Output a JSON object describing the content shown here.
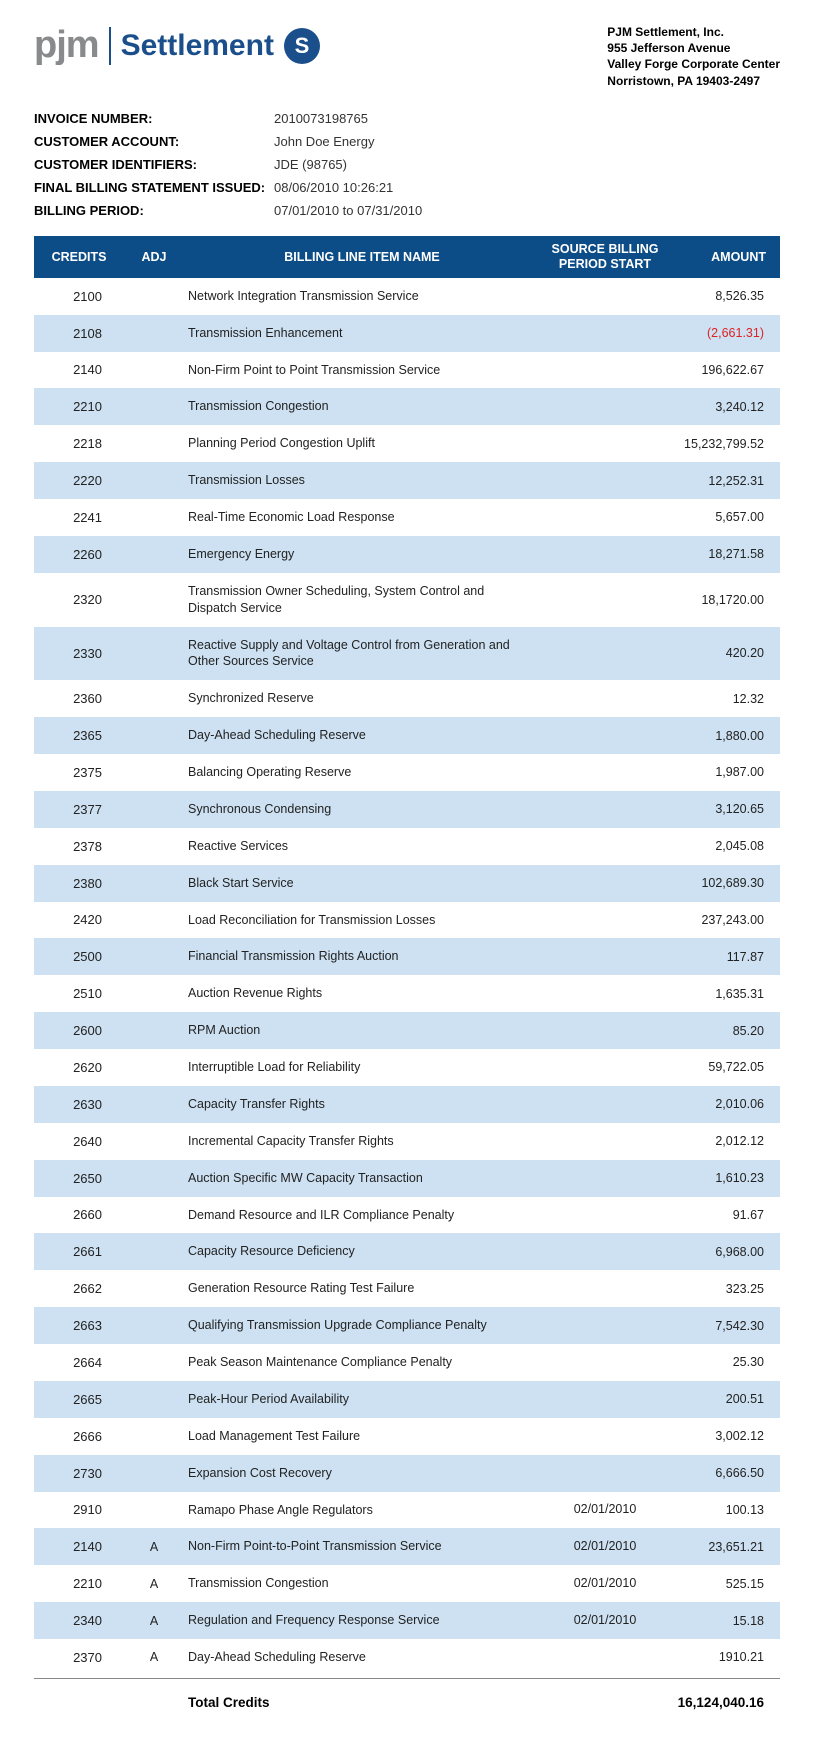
{
  "logo": {
    "pjm": "pjm",
    "settlement": "Settlement",
    "iconGlyph": "S"
  },
  "company": {
    "name": "PJM Settlement, Inc.",
    "line1": "955 Jefferson Avenue",
    "line2": "Valley Forge Corporate Center",
    "line3": "Norristown, PA  19403-2497"
  },
  "meta": {
    "invoiceNumberLabel": "INVOICE NUMBER:",
    "invoiceNumber": "2010073198765",
    "customerAccountLabel": "CUSTOMER ACCOUNT:",
    "customerAccount": "John Doe Energy",
    "customerIdentifiersLabel": "CUSTOMER IDENTIFIERS:",
    "customerIdentifiers": "JDE (98765)",
    "finalBillingLabel": "FINAL BILLING STATEMENT ISSUED:",
    "finalBilling": "08/06/2010 10:26:21",
    "billingPeriodLabel": "BILLING PERIOD:",
    "billingPeriod": "07/01/2010 to 07/31/2010"
  },
  "columns": {
    "credits": "CREDITS",
    "adj": "ADJ",
    "name": "BILLING LINE ITEM NAME",
    "source": "SOURCE BILLING PERIOD START",
    "amount": "AMOUNT"
  },
  "rows": [
    {
      "credits": "2100",
      "adj": "",
      "name": "Network Integration Transmission Service",
      "source": "",
      "amount": "8,526.35",
      "neg": false
    },
    {
      "credits": "2108",
      "adj": "",
      "name": "Transmission Enhancement",
      "source": "",
      "amount": "(2,661.31)",
      "neg": true
    },
    {
      "credits": "2140",
      "adj": "",
      "name": "Non-Firm Point to Point Transmission Service",
      "source": "",
      "amount": "196,622.67",
      "neg": false
    },
    {
      "credits": "2210",
      "adj": "",
      "name": "Transmission Congestion",
      "source": "",
      "amount": "3,240.12",
      "neg": false
    },
    {
      "credits": "2218",
      "adj": "",
      "name": "Planning Period Congestion Uplift",
      "source": "",
      "amount": "15,232,799.52",
      "neg": false
    },
    {
      "credits": "2220",
      "adj": "",
      "name": "Transmission Losses",
      "source": "",
      "amount": "12,252.31",
      "neg": false
    },
    {
      "credits": "2241",
      "adj": "",
      "name": "Real-Time Economic Load Response",
      "source": "",
      "amount": "5,657.00",
      "neg": false
    },
    {
      "credits": "2260",
      "adj": "",
      "name": "Emergency Energy",
      "source": "",
      "amount": "18,271.58",
      "neg": false
    },
    {
      "credits": "2320",
      "adj": "",
      "name": "Transmission Owner Scheduling, System Control and Dispatch Service",
      "source": "",
      "amount": "18,1720.00",
      "neg": false
    },
    {
      "credits": "2330",
      "adj": "",
      "name": "Reactive Supply and Voltage Control from Generation and Other Sources Service",
      "source": "",
      "amount": "420.20",
      "neg": false
    },
    {
      "credits": "2360",
      "adj": "",
      "name": "Synchronized Reserve",
      "source": "",
      "amount": "12.32",
      "neg": false
    },
    {
      "credits": "2365",
      "adj": "",
      "name": "Day-Ahead Scheduling Reserve",
      "source": "",
      "amount": "1,880.00",
      "neg": false
    },
    {
      "credits": "2375",
      "adj": "",
      "name": "Balancing Operating Reserve",
      "source": "",
      "amount": "1,987.00",
      "neg": false
    },
    {
      "credits": "2377",
      "adj": "",
      "name": "Synchronous Condensing",
      "source": "",
      "amount": "3,120.65",
      "neg": false
    },
    {
      "credits": "2378",
      "adj": "",
      "name": "Reactive Services",
      "source": "",
      "amount": "2,045.08",
      "neg": false
    },
    {
      "credits": "2380",
      "adj": "",
      "name": "Black Start Service",
      "source": "",
      "amount": "102,689.30",
      "neg": false
    },
    {
      "credits": "2420",
      "adj": "",
      "name": "Load Reconciliation for Transmission Losses",
      "source": "",
      "amount": "237,243.00",
      "neg": false
    },
    {
      "credits": "2500",
      "adj": "",
      "name": "Financial Transmission Rights Auction",
      "source": "",
      "amount": "117.87",
      "neg": false
    },
    {
      "credits": "2510",
      "adj": "",
      "name": "Auction Revenue Rights",
      "source": "",
      "amount": "1,635.31",
      "neg": false
    },
    {
      "credits": "2600",
      "adj": "",
      "name": "RPM Auction",
      "source": "",
      "amount": "85.20",
      "neg": false
    },
    {
      "credits": "2620",
      "adj": "",
      "name": "Interruptible Load for Reliability",
      "source": "",
      "amount": "59,722.05",
      "neg": false
    },
    {
      "credits": "2630",
      "adj": "",
      "name": "Capacity Transfer Rights",
      "source": "",
      "amount": "2,010.06",
      "neg": false
    },
    {
      "credits": "2640",
      "adj": "",
      "name": "Incremental Capacity Transfer Rights",
      "source": "",
      "amount": "2,012.12",
      "neg": false
    },
    {
      "credits": "2650",
      "adj": "",
      "name": "Auction Specific MW Capacity Transaction",
      "source": "",
      "amount": "1,610.23",
      "neg": false
    },
    {
      "credits": "2660",
      "adj": "",
      "name": "Demand Resource and ILR Compliance Penalty",
      "source": "",
      "amount": "91.67",
      "neg": false
    },
    {
      "credits": "2661",
      "adj": "",
      "name": "Capacity Resource Deficiency",
      "source": "",
      "amount": "6,968.00",
      "neg": false
    },
    {
      "credits": "2662",
      "adj": "",
      "name": "Generation Resource Rating Test Failure",
      "source": "",
      "amount": "323.25",
      "neg": false
    },
    {
      "credits": "2663",
      "adj": "",
      "name": "Qualifying Transmission Upgrade Compliance Penalty",
      "source": "",
      "amount": "7,542.30",
      "neg": false
    },
    {
      "credits": "2664",
      "adj": "",
      "name": "Peak Season Maintenance Compliance Penalty",
      "source": "",
      "amount": "25.30",
      "neg": false
    },
    {
      "credits": "2665",
      "adj": "",
      "name": "Peak-Hour Period Availability",
      "source": "",
      "amount": "200.51",
      "neg": false
    },
    {
      "credits": "2666",
      "adj": "",
      "name": "Load Management Test Failure",
      "source": "",
      "amount": "3,002.12",
      "neg": false
    },
    {
      "credits": "2730",
      "adj": "",
      "name": "Expansion Cost Recovery",
      "source": "",
      "amount": "6,666.50",
      "neg": false
    },
    {
      "credits": "2910",
      "adj": "",
      "name": "Ramapo Phase Angle Regulators",
      "source": "02/01/2010",
      "amount": "100.13",
      "neg": false
    },
    {
      "credits": "2140",
      "adj": "A",
      "name": "Non-Firm Point-to-Point Transmission Service",
      "source": "02/01/2010",
      "amount": "23,651.21",
      "neg": false
    },
    {
      "credits": "2210",
      "adj": "A",
      "name": "Transmission Congestion",
      "source": "02/01/2010",
      "amount": "525.15",
      "neg": false
    },
    {
      "credits": "2340",
      "adj": "A",
      "name": "Regulation and Frequency Response Service",
      "source": "02/01/2010",
      "amount": "15.18",
      "neg": false
    },
    {
      "credits": "2370",
      "adj": "A",
      "name": "Day-Ahead Scheduling Reserve",
      "source": "",
      "amount": "1910.21",
      "neg": false
    }
  ],
  "total": {
    "label": "Total Credits",
    "amount": "16,124,040.16"
  },
  "styling": {
    "headerBg": "#0d4d87",
    "headerText": "#ffffff",
    "altRowBg": "#cde1f2",
    "negativeColor": "#d22222",
    "bodyText": "#222222",
    "logoGray": "#888a8c",
    "logoBlue": "#1b4f8b"
  }
}
